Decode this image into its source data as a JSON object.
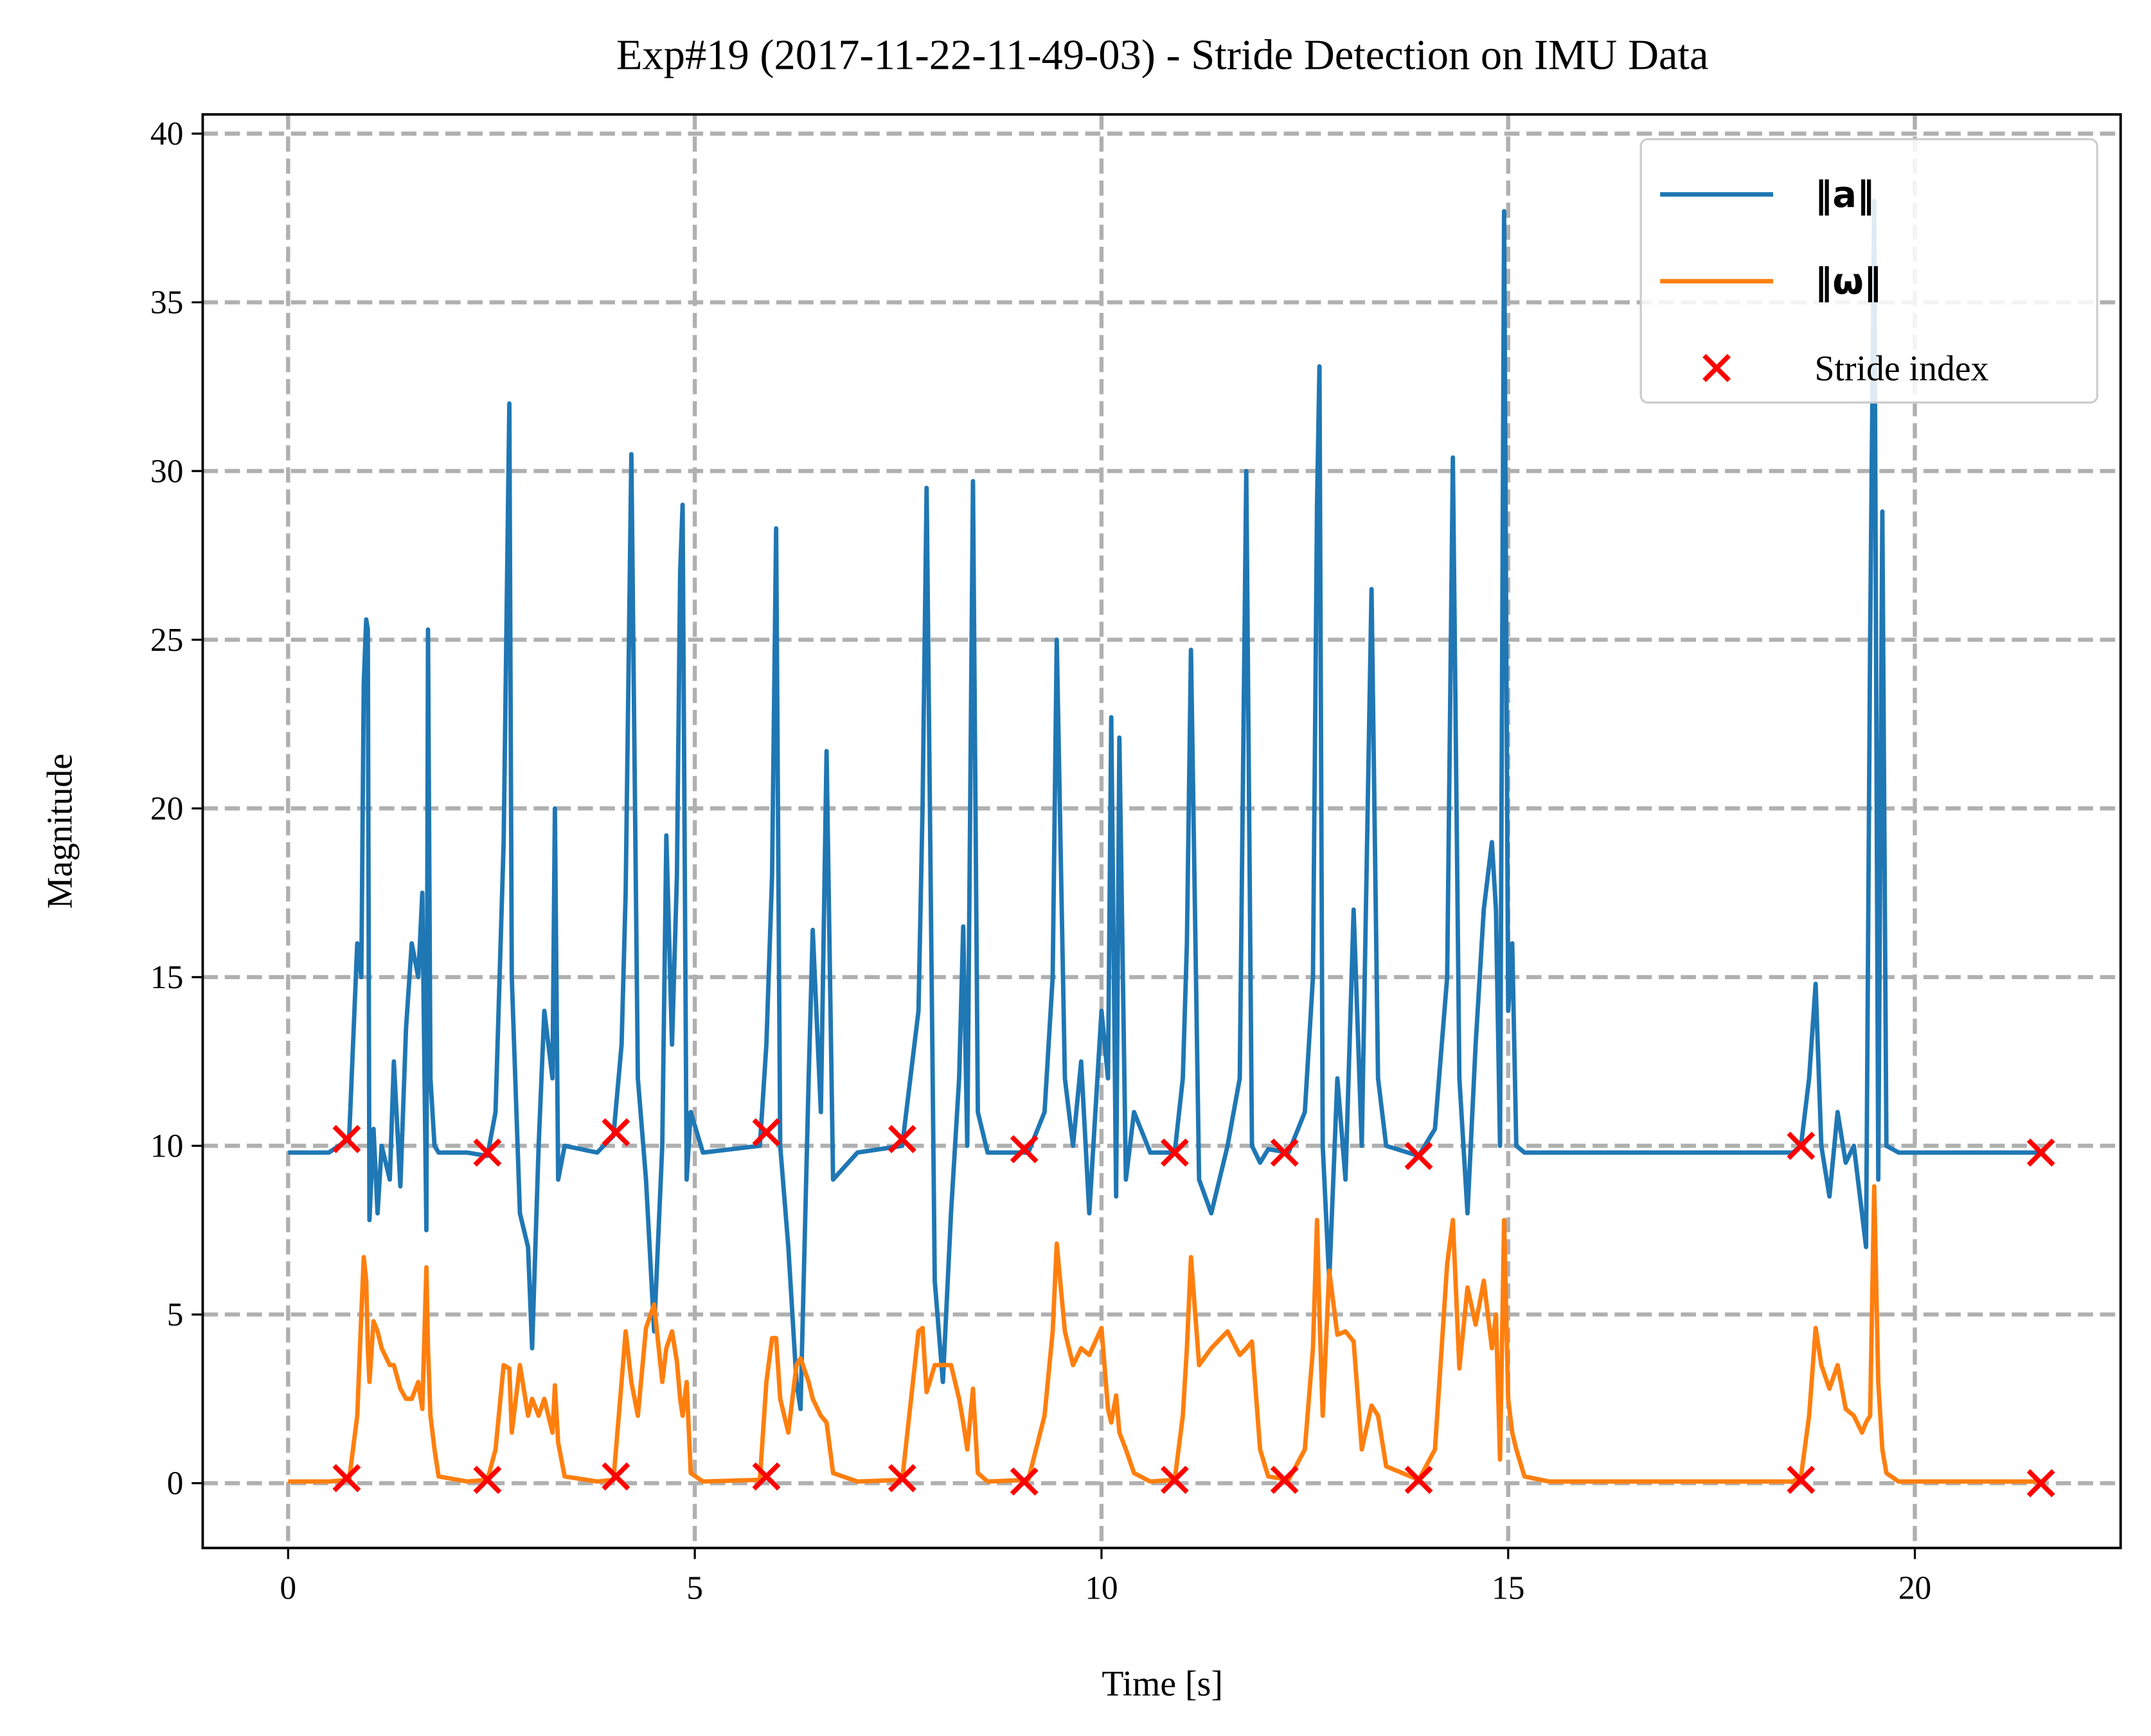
{
  "chart_data": {
    "type": "line",
    "title": "Exp#19 (2017-11-22-11-49-03) - Stride Detection on IMU Data",
    "x_label": "Time [s]",
    "y_label": "Magnitude",
    "xlim": [
      -1.05,
      22.53
    ],
    "ylim": [
      -1.92,
      40.57
    ],
    "xticks": [
      0,
      5,
      10,
      15,
      20
    ],
    "yticks": [
      0,
      5,
      10,
      15,
      20,
      25,
      30,
      35,
      40
    ],
    "grid": true,
    "legend": "upper right",
    "x": [
      0.0,
      0.5,
      0.75,
      0.85,
      0.9,
      0.93,
      0.96,
      0.98,
      1.0,
      1.05,
      1.1,
      1.15,
      1.25,
      1.3,
      1.38,
      1.45,
      1.52,
      1.6,
      1.65,
      1.7,
      1.72,
      1.75,
      1.8,
      1.85,
      2.2,
      2.45,
      2.55,
      2.65,
      2.72,
      2.75,
      2.85,
      2.95,
      3.0,
      3.08,
      3.15,
      3.25,
      3.28,
      3.32,
      3.4,
      3.8,
      4.0,
      4.1,
      4.15,
      4.22,
      4.3,
      4.4,
      4.5,
      4.6,
      4.65,
      4.72,
      4.78,
      4.82,
      4.85,
      4.9,
      4.95,
      5.1,
      5.8,
      5.88,
      5.95,
      6.0,
      6.05,
      6.15,
      6.25,
      6.3,
      6.4,
      6.45,
      6.55,
      6.62,
      6.7,
      7.0,
      7.55,
      7.75,
      7.8,
      7.85,
      7.95,
      8.05,
      8.15,
      8.25,
      8.3,
      8.35,
      8.42,
      8.48,
      8.6,
      9.1,
      9.3,
      9.4,
      9.45,
      9.55,
      9.65,
      9.75,
      9.85,
      10.0,
      10.08,
      10.12,
      10.18,
      10.22,
      10.3,
      10.4,
      10.6,
      10.9,
      11.0,
      11.05,
      11.1,
      11.2,
      11.35,
      11.55,
      11.7,
      11.78,
      11.85,
      11.95,
      12.05,
      12.3,
      12.5,
      12.6,
      12.65,
      12.68,
      12.72,
      12.8,
      12.9,
      13.0,
      13.1,
      13.2,
      13.32,
      13.4,
      13.5,
      13.9,
      14.1,
      14.25,
      14.32,
      14.4,
      14.5,
      14.6,
      14.7,
      14.8,
      14.85,
      14.9,
      14.95,
      15.0,
      15.05,
      15.1,
      15.2,
      15.5,
      18.5,
      18.6,
      18.7,
      18.78,
      18.85,
      18.95,
      19.05,
      19.15,
      19.25,
      19.35,
      19.4,
      19.45,
      19.5,
      19.55,
      19.6,
      19.65,
      19.8,
      21.6
    ],
    "series": [
      {
        "name": "‖a‖",
        "type": "line",
        "color": "#1f77b4",
        "values": [
          9.8,
          9.8,
          10.2,
          16,
          15,
          23.7,
          25.6,
          25.3,
          7.8,
          10.5,
          8,
          10,
          9,
          12.5,
          8.8,
          13.5,
          16,
          15,
          17.5,
          7.5,
          25.3,
          12,
          10,
          9.8,
          9.8,
          9.7,
          11,
          19,
          32,
          15,
          8,
          7,
          4,
          10,
          14,
          12,
          20,
          9,
          10,
          9.8,
          10.3,
          13,
          17.5,
          30.5,
          12,
          9,
          4.5,
          10,
          19.2,
          13,
          18,
          27,
          29,
          9,
          11,
          9.8,
          10,
          13,
          18,
          28.3,
          10,
          7,
          3,
          2.2,
          12,
          16.4,
          11,
          21.7,
          9,
          9.8,
          10,
          14,
          20,
          29.5,
          6,
          3,
          8,
          12,
          16.5,
          10,
          29.7,
          11,
          9.8,
          9.8,
          11,
          15,
          25,
          12,
          10,
          12.5,
          8,
          14,
          12,
          22.7,
          8.5,
          22.1,
          9,
          11,
          9.8,
          9.8,
          12,
          16,
          24.7,
          9,
          8,
          10,
          12,
          30,
          10,
          9.5,
          9.9,
          9.8,
          11,
          15,
          29,
          33.1,
          10,
          6,
          12,
          9,
          17,
          10,
          26.5,
          12,
          10,
          9.7,
          10.5,
          15,
          30.4,
          12,
          8,
          13,
          17,
          19,
          17,
          10,
          37.7,
          14,
          16,
          10,
          9.8,
          9.8,
          9.8,
          10,
          12,
          14.8,
          10,
          8.5,
          11,
          9.5,
          10,
          8,
          7,
          25,
          38,
          9,
          28.8,
          10,
          9.8,
          9.8
        ]
      },
      {
        "name": "‖ω‖",
        "type": "line",
        "color": "#ff7f0e",
        "values": [
          0.05,
          0.05,
          0.1,
          2,
          5,
          6.7,
          6,
          4,
          3,
          4.8,
          4.5,
          4,
          3.5,
          3.5,
          2.8,
          2.5,
          2.5,
          3,
          2.2,
          6.4,
          4,
          2,
          1,
          0.2,
          0.05,
          0.1,
          1,
          3.5,
          3.4,
          1.5,
          3.5,
          2,
          2.5,
          2,
          2.5,
          1.5,
          2.9,
          1.2,
          0.2,
          0.05,
          0.1,
          3,
          4.5,
          3,
          2,
          4.6,
          5.3,
          3,
          4,
          4.5,
          3.6,
          2.5,
          2,
          3,
          0.3,
          0.05,
          0.1,
          3,
          4.3,
          4.3,
          2.5,
          1.5,
          3.5,
          3.7,
          3,
          2.5,
          2,
          1.8,
          0.3,
          0.05,
          0.1,
          4.5,
          4.6,
          2.7,
          3.5,
          3.5,
          3.5,
          2.5,
          1.8,
          1,
          2.8,
          0.3,
          0.05,
          0.1,
          2,
          4.5,
          7.1,
          4.5,
          3.5,
          4,
          3.8,
          4.6,
          2.2,
          1.8,
          2.6,
          1.5,
          1,
          0.3,
          0.05,
          0.1,
          2,
          4,
          6.7,
          3.5,
          4,
          4.5,
          3.8,
          4,
          4.2,
          1,
          0.2,
          0.1,
          1,
          4,
          7.8,
          5,
          2,
          6.3,
          4.4,
          4.5,
          4.2,
          1,
          2.3,
          2,
          0.5,
          0.1,
          1,
          6.5,
          7.8,
          3.4,
          5.8,
          4.7,
          6,
          4,
          5,
          0.7,
          7.8,
          2.5,
          1.5,
          1,
          0.2,
          0.05,
          0.05,
          0.2,
          2,
          4.6,
          3.5,
          2.8,
          3.5,
          2.2,
          2.0,
          1.5,
          1.8,
          2,
          8.8,
          3,
          1,
          0.3,
          0.05,
          0.05
        ]
      },
      {
        "name": "Stride index",
        "type": "scatter",
        "color": "#ff0000",
        "x": [
          0.72,
          2.45,
          4.03,
          5.88,
          7.55,
          9.05,
          10.9,
          12.25,
          13.9,
          18.6,
          21.55,
          0.72,
          2.45,
          4.03,
          5.88,
          7.55,
          9.05,
          10.9,
          12.25,
          13.9,
          18.6,
          21.55
        ],
        "values": [
          10.2,
          9.8,
          10.4,
          10.4,
          10.2,
          9.9,
          9.8,
          9.8,
          9.7,
          10.0,
          9.8,
          0.15,
          0.1,
          0.2,
          0.2,
          0.15,
          0.05,
          0.1,
          0.1,
          0.1,
          0.1,
          0
        ]
      }
    ]
  }
}
